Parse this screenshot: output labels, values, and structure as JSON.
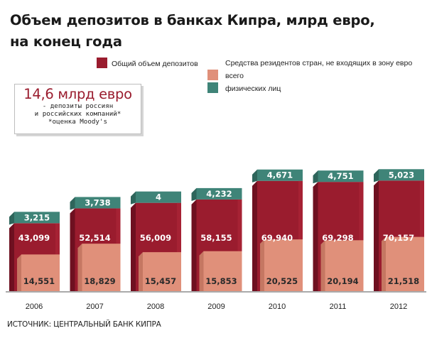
{
  "chart_data": {
    "type": "bar",
    "title": "Объем депозитов в банках Кипра, млрд евро,",
    "subtitle": "на конец года",
    "categories": [
      "2006",
      "2007",
      "2008",
      "2009",
      "2010",
      "2011",
      "2012"
    ],
    "series": [
      {
        "name": "Общий объем депозитов",
        "values": [
          43.099,
          52.514,
          56.009,
          58.155,
          69.94,
          69.298,
          70.157
        ],
        "labels": [
          "43,099",
          "52,514",
          "56,009",
          "58,155",
          "69,940",
          "69,298",
          "70,157"
        ]
      },
      {
        "name": "всего",
        "values": [
          14.551,
          18.829,
          15.457,
          15.853,
          20.525,
          20.194,
          21.518
        ],
        "labels": [
          "14,551",
          "18,829",
          "15,457",
          "15,853",
          "20,525",
          "20,194",
          "21,518"
        ]
      },
      {
        "name": "физических лиц",
        "values": [
          3.215,
          3.738,
          4,
          4.232,
          4.671,
          4.751,
          5.023
        ],
        "labels": [
          "3,215",
          "3,738",
          "4",
          "4,232",
          "4,671",
          "4,751",
          "5,023"
        ]
      }
    ],
    "legend_group_title": "Средства резидентов стран, не входящих в зону евро",
    "legend_position": "top",
    "annotation": {
      "big": "14,6 млрд евро",
      "lines": [
        "- депозиты россиян",
        "и российских компаний*",
        "*оценка Moody's"
      ]
    },
    "source": "ИСТОЧНИК: ЦЕНТРАЛЬНЫЙ БАНК КИПРА",
    "grid": false
  },
  "colors": {
    "total": "#9a1c2e",
    "total_light": "#b0283b",
    "total_dark": "#6e1020",
    "nonres": "#e0907a",
    "nonres_dark": "#c57762",
    "individuals": "#3f8478",
    "individuals_dark": "#2e655b",
    "baseline": "#555555"
  }
}
